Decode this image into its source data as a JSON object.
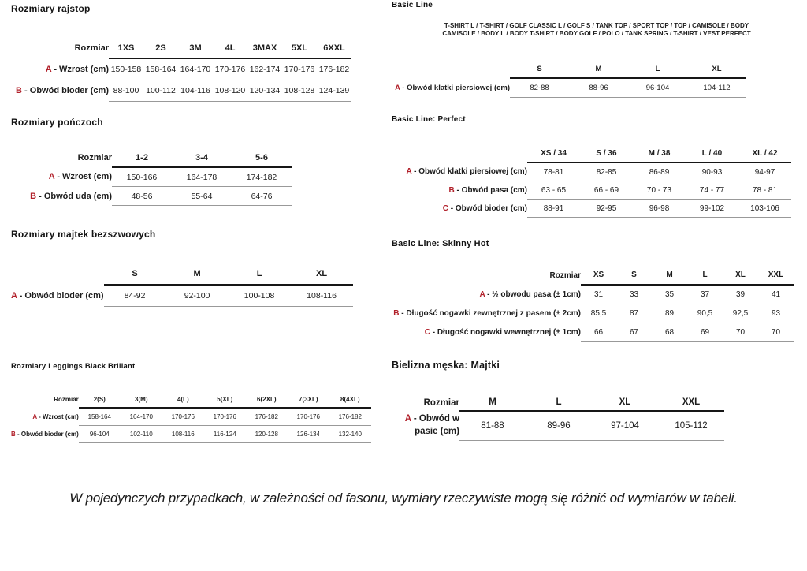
{
  "colors": {
    "accent_red": "#b1202a",
    "text": "#1c1c1c",
    "thick_rule": "#161616",
    "thin_rule": "#999999"
  },
  "note": "W pojedynczych przypadkach, w zależności od fasonu, wymiary rzeczywiste mogą się różnić od wymiarów w tabeli.",
  "sections": [
    {
      "id": "rajstopy",
      "column": "left",
      "title": "Rozmiary rajstop",
      "table": {
        "corner_label": "Rozmiar",
        "columns": [
          "1XS",
          "2S",
          "3M",
          "4L",
          "3MAX",
          "5XL",
          "6XXL"
        ],
        "rows": [
          {
            "letter": "A",
            "label": "Wzrost (cm)",
            "values": [
              "150-158",
              "158-164",
              "164-170",
              "170-176",
              "162-174",
              "170-176",
              "176-182"
            ]
          },
          {
            "letter": "B",
            "label": "Obwód bioder (cm)",
            "values": [
              "88-100",
              "100-112",
              "104-116",
              "108-120",
              "120-134",
              "108-128",
              "124-139"
            ]
          }
        ]
      }
    },
    {
      "id": "ponczochy",
      "column": "left",
      "title": "Rozmiary pończoch",
      "table": {
        "corner_label": "Rozmiar",
        "columns": [
          "1-2",
          "3-4",
          "5-6"
        ],
        "rows": [
          {
            "letter": "A",
            "label": "Wzrost (cm)",
            "values": [
              "150-166",
              "164-178",
              "174-182"
            ]
          },
          {
            "letter": "B",
            "label": "Obwód uda (cm)",
            "values": [
              "48-56",
              "55-64",
              "64-76"
            ]
          }
        ]
      }
    },
    {
      "id": "majtki-bezszwowe",
      "column": "left",
      "title": "Rozmiary majtek bezszwowych",
      "table": {
        "corner_label": "",
        "columns": [
          "S",
          "M",
          "L",
          "XL"
        ],
        "rows": [
          {
            "letter": "A",
            "label": "Obwód bioder (cm)",
            "values": [
              "84-92",
              "92-100",
              "100-108",
              "108-116"
            ]
          }
        ]
      }
    },
    {
      "id": "leggings",
      "column": "left",
      "title": "Rozmiary Leggings Black Brillant",
      "table": {
        "corner_label": "Rozmiar",
        "columns": [
          "2(S)",
          "3(M)",
          "4(L)",
          "5(XL)",
          "6(2XL)",
          "7(3XL)",
          "8(4XL)"
        ],
        "rows": [
          {
            "letter": "A",
            "label": "Wzrost (cm)",
            "values": [
              "158-164",
              "164-170",
              "170-176",
              "170-176",
              "176-182",
              "170-176",
              "176-182"
            ]
          },
          {
            "letter": "B",
            "label": "Obwód bioder (cm)",
            "values": [
              "96-104",
              "102-110",
              "108-116",
              "116-124",
              "120-128",
              "126-134",
              "132-140"
            ]
          }
        ]
      }
    },
    {
      "id": "basic-line",
      "column": "right",
      "title": "Basic Line",
      "subtitle": [
        "T-SHIRT L / T-SHIRT / GOLF CLASSIC L / GOLF S / TANK TOP / SPORT TOP / TOP / CAMISOLE / BODY",
        "CAMISOLE / BODY L / BODY T-SHIRT / BODY GOLF / POLO / TANK SPRING / T-SHIRT / VEST PERFECT"
      ],
      "table": {
        "corner_label": "",
        "columns": [
          "S",
          "M",
          "L",
          "XL"
        ],
        "rows": [
          {
            "letter": "A",
            "label": "Obwód klatki piersiowej (cm)",
            "values": [
              "82-88",
              "88-96",
              "96-104",
              "104-112"
            ]
          }
        ]
      }
    },
    {
      "id": "perfect",
      "column": "right",
      "title": "Basic Line: Perfect",
      "table": {
        "corner_label": "",
        "columns": [
          "XS / 34",
          "S / 36",
          "M / 38",
          "L / 40",
          "XL / 42"
        ],
        "rows": [
          {
            "letter": "A",
            "label": "Obwód klatki piersiowej (cm)",
            "values": [
              "78-81",
              "82-85",
              "86-89",
              "90-93",
              "94-97"
            ]
          },
          {
            "letter": "B",
            "label": "Obwód pasa (cm)",
            "values": [
              "63 - 65",
              "66 - 69",
              "70 - 73",
              "74 - 77",
              "78 - 81"
            ]
          },
          {
            "letter": "C",
            "label": "Obwód bioder (cm)",
            "values": [
              "88-91",
              "92-95",
              "96-98",
              "99-102",
              "103-106"
            ]
          }
        ]
      }
    },
    {
      "id": "skinny-hot",
      "column": "right",
      "title": "Basic Line: Skinny Hot",
      "table": {
        "corner_label": "Rozmiar",
        "columns": [
          "XS",
          "S",
          "M",
          "L",
          "XL",
          "XXL"
        ],
        "rows": [
          {
            "letter": "A",
            "label": "½ obwodu pasa (± 1cm)",
            "values": [
              "31",
              "33",
              "35",
              "37",
              "39",
              "41"
            ]
          },
          {
            "letter": "B",
            "label": "Długość nogawki zewnętrznej z pasem (± 2cm)",
            "values": [
              "85,5",
              "87",
              "89",
              "90,5",
              "92,5",
              "93"
            ]
          },
          {
            "letter": "C",
            "label": "Długość nogawki wewnętrznej (± 1cm)",
            "values": [
              "66",
              "67",
              "68",
              "69",
              "70",
              "70"
            ]
          }
        ]
      }
    },
    {
      "id": "bielizna",
      "column": "right",
      "title": "Bielizna męska: Majtki",
      "table": {
        "corner_label": "Rozmiar",
        "columns": [
          "M",
          "L",
          "XL",
          "XXL"
        ],
        "rows": [
          {
            "letter": "A",
            "label": "Obwód w pasie (cm)",
            "values": [
              "81-88",
              "89-96",
              "97-104",
              "105-112"
            ]
          }
        ]
      }
    }
  ]
}
